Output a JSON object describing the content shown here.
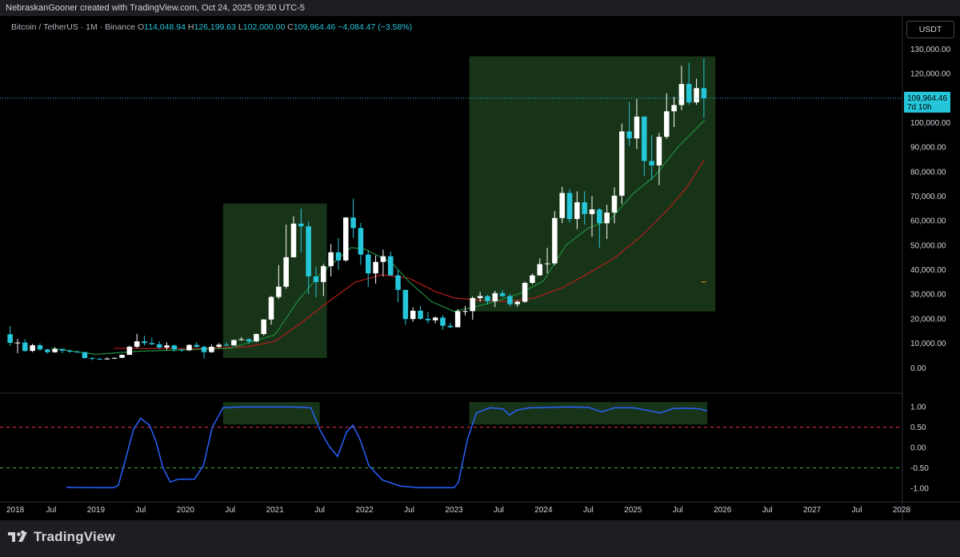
{
  "header": {
    "text": "NebraskanGooner created with TradingView.com, Oct 24, 2025 09:30 UTC-5"
  },
  "legend": {
    "symbol": "Bitcoin / TetherUS · 1M · Binance",
    "open_label": "O",
    "open": "114,048.94",
    "high_label": "H",
    "high": "126,199.63",
    "low_label": "L",
    "low": "102,000.00",
    "close_label": "C",
    "close": "109,964.46",
    "change": "−4,084.47 (−3.58%)"
  },
  "currency": "USDT",
  "price_label": {
    "value": "109,964.46",
    "countdown": "7d 10h"
  },
  "footer": {
    "logo_text": "TradingView"
  },
  "colors": {
    "up": "#ffffff",
    "down": "#26c6da",
    "zone": "#1b3a1b",
    "ema_fast": "#1e8e3e",
    "ema_slow": "#b71c1c",
    "oscillator": "#2962ff",
    "osc_upper": "#f23645",
    "osc_lower": "#4caf50"
  },
  "chart_data": [
    {
      "type": "candlestick",
      "title": "Bitcoin / TetherUS · 1M · Binance",
      "ylim": [
        -10000,
        135000
      ],
      "y_ticks": [
        "0.00",
        "10,000.00",
        "20,000.00",
        "30,000.00",
        "40,000.00",
        "50,000.00",
        "60,000.00",
        "70,000.00",
        "80,000.00",
        "90,000.00",
        "100,000.00",
        "110,000.00",
        "120,000.00",
        "130,000.00"
      ],
      "y_tick_values": [
        0,
        10000,
        20000,
        30000,
        40000,
        50000,
        60000,
        70000,
        80000,
        90000,
        100000,
        110000,
        120000,
        130000
      ],
      "x_ticks": [
        "2018",
        "Jul",
        "2019",
        "Jul",
        "2020",
        "Jul",
        "2021",
        "Jul",
        "2022",
        "Jul",
        "2023",
        "Jul",
        "2024",
        "Jul",
        "2025",
        "Jul",
        "2026",
        "Jul",
        "2027",
        "Jul",
        "2028"
      ],
      "x_tick_months": [
        "2018-01",
        "2018-07",
        "2019-01",
        "2019-07",
        "2020-01",
        "2020-07",
        "2021-01",
        "2021-07",
        "2022-01",
        "2022-07",
        "2023-01",
        "2023-07",
        "2024-01",
        "2024-07",
        "2025-01",
        "2025-07",
        "2026-01",
        "2026-07",
        "2027-01",
        "2027-07",
        "2028-01"
      ],
      "start_month": "2018-01",
      "candles": [
        [
          13700,
          17000,
          9000,
          10200
        ],
        [
          10200,
          11800,
          6000,
          10300
        ],
        [
          10300,
          11700,
          6500,
          6900
        ],
        [
          6900,
          9800,
          6400,
          9200
        ],
        [
          9200,
          10000,
          7000,
          7500
        ],
        [
          7500,
          7800,
          5800,
          6400
        ],
        [
          6400,
          8500,
          6100,
          7700
        ],
        [
          7700,
          7800,
          5900,
          7000
        ],
        [
          7000,
          7400,
          6100,
          6600
        ],
        [
          6600,
          7000,
          6200,
          6400
        ],
        [
          6400,
          6600,
          3700,
          4000
        ],
        [
          4000,
          4400,
          3100,
          3700
        ],
        [
          3700,
          4100,
          3300,
          3450
        ],
        [
          3450,
          4200,
          3400,
          3800
        ],
        [
          3800,
          4100,
          3600,
          4100
        ],
        [
          4100,
          5500,
          4000,
          5300
        ],
        [
          5300,
          9100,
          5300,
          8600
        ],
        [
          8600,
          13900,
          8000,
          10800
        ],
        [
          10800,
          13100,
          9100,
          10100
        ],
        [
          10100,
          12300,
          9300,
          9600
        ],
        [
          9600,
          10900,
          7700,
          8300
        ],
        [
          8300,
          10400,
          7300,
          9150
        ],
        [
          9150,
          9500,
          6500,
          7550
        ],
        [
          7550,
          7700,
          6400,
          7200
        ],
        [
          7200,
          9600,
          6850,
          9350
        ],
        [
          9350,
          10500,
          8400,
          8550
        ],
        [
          8550,
          9200,
          3800,
          6400
        ],
        [
          6400,
          9500,
          6150,
          8600
        ],
        [
          8600,
          10100,
          8100,
          9450
        ],
        [
          9450,
          10400,
          8900,
          9150
        ],
        [
          9150,
          11450,
          9000,
          11350
        ],
        [
          11350,
          12500,
          11100,
          11650
        ],
        [
          11650,
          12100,
          9900,
          10800
        ],
        [
          10800,
          14000,
          10400,
          13800
        ],
        [
          13800,
          19900,
          13200,
          19700
        ],
        [
          19700,
          29300,
          17600,
          28900
        ],
        [
          28900,
          41900,
          28100,
          33100
        ],
        [
          33100,
          58400,
          32300,
          45100
        ],
        [
          45100,
          61800,
          45000,
          58800
        ],
        [
          58800,
          64900,
          47000,
          57700
        ],
        [
          57700,
          59600,
          30000,
          37300
        ],
        [
          37300,
          41300,
          28800,
          35000
        ],
        [
          35000,
          42400,
          29300,
          41500
        ],
        [
          41500,
          50500,
          37300,
          47100
        ],
        [
          47100,
          52900,
          40000,
          43800
        ],
        [
          43800,
          61500,
          43300,
          61300
        ],
        [
          61300,
          69000,
          53000,
          57000
        ],
        [
          57000,
          59100,
          42000,
          46200
        ],
        [
          46200,
          47900,
          33000,
          38500
        ],
        [
          38500,
          45800,
          34300,
          43200
        ],
        [
          43200,
          48200,
          37200,
          45500
        ],
        [
          45500,
          47400,
          37600,
          37700
        ],
        [
          37700,
          40000,
          26700,
          31800
        ],
        [
          31800,
          31900,
          17600,
          19900
        ],
        [
          19900,
          24700,
          18800,
          23300
        ],
        [
          23300,
          25200,
          19500,
          20000
        ],
        [
          20000,
          22800,
          18100,
          19400
        ],
        [
          19400,
          20900,
          18200,
          20500
        ],
        [
          20500,
          21500,
          15500,
          17150
        ],
        [
          17150,
          18400,
          16300,
          16550
        ],
        [
          16550,
          23950,
          16500,
          23100
        ],
        [
          23100,
          25250,
          21350,
          23150
        ],
        [
          23150,
          29200,
          19550,
          28450
        ],
        [
          28450,
          31000,
          26950,
          29250
        ],
        [
          29250,
          29800,
          25800,
          27200
        ],
        [
          27200,
          31400,
          24800,
          30450
        ],
        [
          30450,
          31800,
          28850,
          29250
        ],
        [
          29250,
          30200,
          25150,
          25950
        ],
        [
          25950,
          27500,
          24900,
          26950
        ],
        [
          26950,
          35200,
          26550,
          34650
        ],
        [
          34650,
          38450,
          34100,
          37700
        ],
        [
          37700,
          44700,
          37600,
          42300
        ],
        [
          42300,
          48950,
          38550,
          42600
        ],
        [
          42600,
          63900,
          41900,
          61100
        ],
        [
          61100,
          73800,
          59000,
          71300
        ],
        [
          71300,
          72800,
          59200,
          60700
        ],
        [
          60700,
          71950,
          56550,
          67500
        ],
        [
          67500,
          72000,
          58400,
          62700
        ],
        [
          62700,
          70000,
          53500,
          64600
        ],
        [
          64600,
          65100,
          49000,
          58950
        ],
        [
          58950,
          66500,
          52550,
          63300
        ],
        [
          63300,
          73600,
          58950,
          70200
        ],
        [
          70200,
          99600,
          66800,
          96400
        ],
        [
          96400,
          108350,
          90500,
          93550
        ],
        [
          93550,
          109600,
          89250,
          102450
        ],
        [
          102450,
          102500,
          78250,
          84350
        ],
        [
          84350,
          95000,
          76600,
          82550
        ],
        [
          82550,
          95800,
          74500,
          94200
        ],
        [
          94200,
          111950,
          93350,
          104600
        ],
        [
          104600,
          110500,
          98200,
          107150
        ],
        [
          107150,
          123200,
          105100,
          115750
        ],
        [
          115750,
          124450,
          107300,
          108250
        ],
        [
          108250,
          117900,
          107250,
          114050
        ],
        [
          114050,
          126200,
          102000,
          109964
        ]
      ],
      "ema_fast": [
        [
          2018.5,
          8000
        ],
        [
          2019.0,
          5500
        ],
        [
          2019.5,
          6800
        ],
        [
          2020.0,
          7300
        ],
        [
          2020.5,
          8000
        ],
        [
          2021.0,
          13500
        ],
        [
          2021.25,
          27000
        ],
        [
          2021.5,
          38000
        ],
        [
          2021.85,
          49000
        ],
        [
          2022.0,
          48500
        ],
        [
          2022.3,
          43000
        ],
        [
          2022.5,
          35000
        ],
        [
          2022.75,
          27000
        ],
        [
          2023.0,
          23000
        ],
        [
          2023.25,
          25000
        ],
        [
          2023.5,
          27500
        ],
        [
          2023.75,
          30500
        ],
        [
          2024.0,
          35500
        ],
        [
          2024.25,
          50000
        ],
        [
          2024.5,
          57000
        ],
        [
          2024.75,
          60500
        ],
        [
          2025.0,
          71000
        ],
        [
          2025.25,
          78500
        ],
        [
          2025.5,
          90000
        ],
        [
          2025.8,
          101000
        ]
      ],
      "ema_slow": [
        [
          2019.2,
          8000
        ],
        [
          2019.7,
          7900
        ],
        [
          2020.2,
          8000
        ],
        [
          2020.7,
          8600
        ],
        [
          2021.0,
          10800
        ],
        [
          2021.3,
          18500
        ],
        [
          2021.6,
          27000
        ],
        [
          2021.9,
          35000
        ],
        [
          2022.2,
          38000
        ],
        [
          2022.5,
          36500
        ],
        [
          2022.8,
          31000
        ],
        [
          2023.0,
          28500
        ],
        [
          2023.3,
          27500
        ],
        [
          2023.6,
          27000
        ],
        [
          2023.9,
          28500
        ],
        [
          2024.2,
          32500
        ],
        [
          2024.5,
          38500
        ],
        [
          2024.8,
          45000
        ],
        [
          2025.1,
          54000
        ],
        [
          2025.4,
          65000
        ],
        [
          2025.6,
          73500
        ],
        [
          2025.8,
          85000
        ]
      ],
      "zones": [
        {
          "x0": 2020.42,
          "x1": 2021.58,
          "y0": 4000,
          "y1": 67000
        },
        {
          "x0": 2023.17,
          "x1": 2025.92,
          "y0": 23000,
          "y1": 127000
        }
      ],
      "last_price": 109964.46,
      "marker": {
        "x": 2025.79,
        "y": 35000
      }
    },
    {
      "type": "line",
      "ylim": [
        -1.3,
        1.3
      ],
      "y_ticks": [
        "1.00",
        "0.50",
        "0.00",
        "-0.50",
        "-1.00"
      ],
      "y_tick_values": [
        1,
        0.5,
        0,
        -0.5,
        -1
      ],
      "hlines": [
        0.5,
        -0.5
      ],
      "series": [
        {
          "points": [
            [
              2018.67,
              -0.98
            ],
            [
              2019.0,
              -0.99
            ],
            [
              2019.2,
              -0.99
            ],
            [
              2019.25,
              -0.93
            ],
            [
              2019.33,
              -0.3
            ],
            [
              2019.42,
              0.45
            ],
            [
              2019.5,
              0.72
            ],
            [
              2019.6,
              0.55
            ],
            [
              2019.67,
              0.15
            ],
            [
              2019.75,
              -0.5
            ],
            [
              2019.83,
              -0.85
            ],
            [
              2019.92,
              -0.78
            ],
            [
              2020.1,
              -0.78
            ],
            [
              2020.2,
              -0.45
            ],
            [
              2020.3,
              0.5
            ],
            [
              2020.42,
              0.98
            ],
            [
              2020.6,
              1.0
            ],
            [
              2021.2,
              1.0
            ],
            [
              2021.4,
              0.98
            ],
            [
              2021.5,
              0.45
            ],
            [
              2021.6,
              0.05
            ],
            [
              2021.7,
              -0.22
            ],
            [
              2021.8,
              0.38
            ],
            [
              2021.87,
              0.55
            ],
            [
              2021.95,
              0.2
            ],
            [
              2022.05,
              -0.45
            ],
            [
              2022.2,
              -0.8
            ],
            [
              2022.4,
              -0.95
            ],
            [
              2022.6,
              -0.99
            ],
            [
              2023.0,
              -0.99
            ],
            [
              2023.05,
              -0.85
            ],
            [
              2023.15,
              0.2
            ],
            [
              2023.25,
              0.85
            ],
            [
              2023.4,
              0.98
            ],
            [
              2023.55,
              0.95
            ],
            [
              2023.62,
              0.8
            ],
            [
              2023.7,
              0.92
            ],
            [
              2023.85,
              0.98
            ],
            [
              2024.3,
              1.0
            ],
            [
              2024.5,
              0.99
            ],
            [
              2024.65,
              0.88
            ],
            [
              2024.8,
              0.98
            ],
            [
              2025.0,
              0.98
            ],
            [
              2025.2,
              0.9
            ],
            [
              2025.3,
              0.85
            ],
            [
              2025.45,
              0.96
            ],
            [
              2025.6,
              0.97
            ],
            [
              2025.75,
              0.95
            ],
            [
              2025.83,
              0.9
            ]
          ]
        }
      ],
      "zones": [
        {
          "x0": 2020.42,
          "x1": 2021.5,
          "y0": 0.57,
          "y1": 1.12
        },
        {
          "x0": 2023.17,
          "x1": 2025.83,
          "y0": 0.57,
          "y1": 1.12
        }
      ]
    }
  ]
}
